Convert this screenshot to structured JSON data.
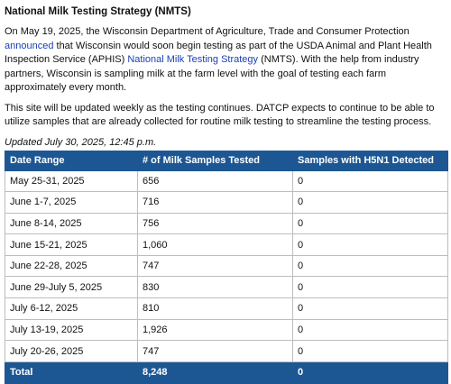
{
  "heading": "National Milk Testing Strategy (NMTS)",
  "para1": {
    "before": "On May 19, 2025, the Wisconsin Department of Agriculture, Trade and Consumer Protection ",
    "link1": "announced",
    "middle": " that Wisconsin would soon begin testing as part of the USDA Animal and Plant Health Inspection Service (APHIS) ",
    "link2": "National Milk Testing Strategy",
    "after": " (NMTS). With the help from industry partners, Wisconsin is sampling milk at the farm level with the goal of testing each farm approximately every month."
  },
  "para2": "This site will be updated weekly as the testing continues. DATCP expects to continue to be able to utilize samples that are already collected for routine milk testing to streamline the testing process.",
  "updated": "Updated July 30, 2025, 12:45 p.m.",
  "table": {
    "headers": [
      "Date Range",
      "# of Milk Samples Tested",
      "Samples with H5N1 Detected"
    ],
    "rows": [
      [
        "May 25-31, 2025",
        "656",
        "0"
      ],
      [
        "June 1-7, 2025",
        "716",
        "0"
      ],
      [
        "June 8-14, 2025",
        "756",
        "0"
      ],
      [
        "June 15-21, 2025",
        "1,060",
        "0"
      ],
      [
        "June 22-28, 2025",
        "747",
        "0"
      ],
      [
        "June 29-July 5, 2025",
        "830",
        "0"
      ],
      [
        "July 6-12, 2025",
        "810",
        "0"
      ],
      [
        "July 13-19, 2025",
        "1,926",
        "0"
      ],
      [
        "July 20-26, 2025",
        "747",
        "0"
      ]
    ],
    "total": [
      "Total",
      "8,248",
      "0"
    ]
  }
}
